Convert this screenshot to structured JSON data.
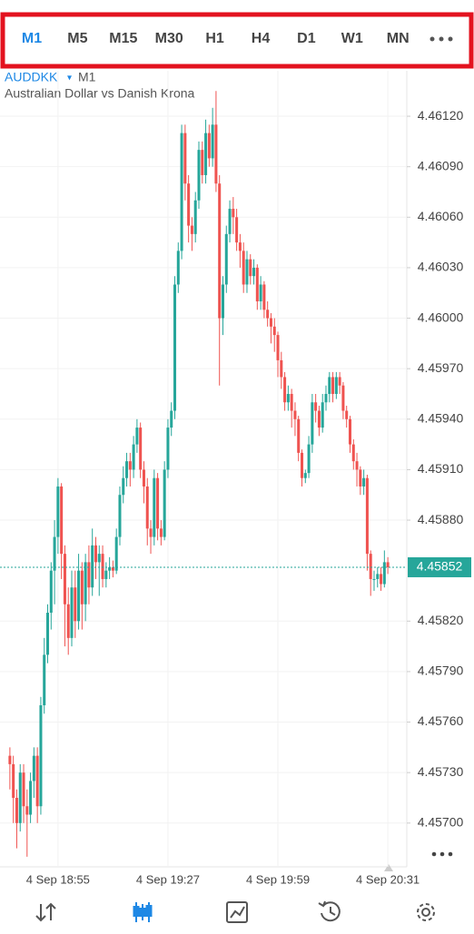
{
  "toolbar": {
    "timeframes": [
      "M1",
      "M5",
      "M15",
      "M30",
      "H1",
      "H4",
      "D1",
      "W1",
      "MN"
    ],
    "selected": 0
  },
  "chart_data": {
    "type": "candlestick",
    "symbol": "AUDDKK",
    "timeframe": "M1",
    "subtitle": "Australian Dollar vs Danish Krona",
    "up_color": "#26a69a",
    "down_color": "#ef5350",
    "grid": true,
    "ylim": [
      4.45674,
      4.46147
    ],
    "yticks": [
      {
        "value": 4.4612,
        "label": "4.46120"
      },
      {
        "value": 4.4609,
        "label": "4.46090"
      },
      {
        "value": 4.4606,
        "label": "4.46060"
      },
      {
        "value": 4.4603,
        "label": "4.46030"
      },
      {
        "value": 4.46,
        "label": "4.46000"
      },
      {
        "value": 4.4597,
        "label": "4.45970"
      },
      {
        "value": 4.4594,
        "label": "4.45940"
      },
      {
        "value": 4.4591,
        "label": "4.45910"
      },
      {
        "value": 4.4588,
        "label": "4.45880"
      },
      {
        "value": 4.4582,
        "label": "4.45820"
      },
      {
        "value": 4.4579,
        "label": "4.45790"
      },
      {
        "value": 4.4576,
        "label": "4.45760"
      },
      {
        "value": 4.4573,
        "label": "4.45730"
      },
      {
        "value": 4.457,
        "label": "4.45700"
      }
    ],
    "last": {
      "value": 4.45852,
      "label": "4.45852"
    },
    "categories": [
      null,
      null,
      null,
      null,
      null,
      null,
      null,
      null,
      null,
      null,
      null,
      null,
      null,
      null,
      "4 Sep 18:55",
      null,
      null,
      null,
      null,
      null,
      null,
      null,
      null,
      null,
      null,
      null,
      null,
      null,
      null,
      null,
      null,
      null,
      null,
      null,
      null,
      null,
      null,
      null,
      null,
      null,
      null,
      null,
      null,
      null,
      null,
      null,
      "4 Sep 19:27",
      null,
      null,
      null,
      null,
      null,
      null,
      null,
      null,
      null,
      null,
      null,
      null,
      null,
      null,
      null,
      null,
      null,
      null,
      null,
      null,
      null,
      null,
      null,
      null,
      null,
      null,
      null,
      null,
      null,
      null,
      null,
      "4 Sep 19:59",
      null,
      null,
      null,
      null,
      null,
      null,
      null,
      null,
      null,
      null,
      null,
      null,
      null,
      null,
      null,
      null,
      null,
      null,
      null,
      null,
      null,
      null,
      null,
      null,
      null,
      null,
      null,
      null,
      null,
      null,
      null,
      "4 Sep 20:31"
    ],
    "ohlc": [
      [
        4.4574,
        4.45745,
        4.4572,
        4.45735
      ],
      [
        4.45735,
        4.4574,
        4.457,
        4.45715
      ],
      [
        4.45715,
        4.4572,
        4.45685,
        4.457
      ],
      [
        4.457,
        4.45735,
        4.45695,
        4.4573
      ],
      [
        4.4573,
        4.45735,
        4.457,
        4.4571
      ],
      [
        4.4571,
        4.4572,
        4.4568,
        4.45705
      ],
      [
        4.45705,
        4.4573,
        4.457,
        4.45725
      ],
      [
        4.45725,
        4.45745,
        4.45715,
        4.4574
      ],
      [
        4.4574,
        4.45745,
        4.457,
        4.4571
      ],
      [
        4.4571,
        4.45775,
        4.45705,
        4.4577
      ],
      [
        4.4577,
        4.4581,
        4.45765,
        4.458
      ],
      [
        4.458,
        4.4583,
        4.45795,
        4.45825
      ],
      [
        4.45825,
        4.45855,
        4.45815,
        4.4585
      ],
      [
        4.4585,
        4.4588,
        4.4583,
        4.4587
      ],
      [
        4.4587,
        4.45905,
        4.4586,
        4.459
      ],
      [
        4.459,
        4.45902,
        4.45845,
        4.4586
      ],
      [
        4.4586,
        4.45865,
        4.45805,
        4.4583
      ],
      [
        4.4583,
        4.4584,
        4.458,
        4.4581
      ],
      [
        4.4581,
        4.4585,
        4.45805,
        4.4584
      ],
      [
        4.4584,
        4.4585,
        4.4581,
        4.4582
      ],
      [
        4.4582,
        4.4586,
        4.45815,
        4.4585
      ],
      [
        4.4585,
        4.45855,
        4.45815,
        4.4583
      ],
      [
        4.4583,
        4.4586,
        4.4582,
        4.45855
      ],
      [
        4.45855,
        4.45865,
        4.4583,
        4.4584
      ],
      [
        4.4584,
        4.45875,
        4.45835,
        4.45865
      ],
      [
        4.45865,
        4.4587,
        4.45845,
        4.45855
      ],
      [
        4.45855,
        4.45865,
        4.45835,
        4.4586
      ],
      [
        4.4586,
        4.45865,
        4.4584,
        4.45845
      ],
      [
        4.45845,
        4.45855,
        4.4584,
        4.4585
      ],
      [
        4.4585,
        4.45858,
        4.45845,
        4.45852
      ],
      [
        4.45852,
        4.45856,
        4.45846,
        4.4585
      ],
      [
        4.4585,
        4.45875,
        4.45848,
        4.4587
      ],
      [
        4.4587,
        4.459,
        4.45865,
        4.45895
      ],
      [
        4.45895,
        4.45912,
        4.4589,
        4.45905
      ],
      [
        4.45905,
        4.4592,
        4.459,
        4.45915
      ],
      [
        4.45915,
        4.4592,
        4.459,
        4.4591
      ],
      [
        4.4591,
        4.4593,
        4.45905,
        4.45925
      ],
      [
        4.45925,
        4.4594,
        4.4592,
        4.45935
      ],
      [
        4.45935,
        4.45938,
        4.45905,
        4.4591
      ],
      [
        4.4591,
        4.45915,
        4.4589,
        4.459
      ],
      [
        4.459,
        4.45905,
        4.45865,
        4.45875
      ],
      [
        4.45875,
        4.4588,
        4.4586,
        4.4587
      ],
      [
        4.4587,
        4.4591,
        4.45865,
        4.45905
      ],
      [
        4.45905,
        4.45908,
        4.45868,
        4.45875
      ],
      [
        4.45875,
        4.4588,
        4.45865,
        4.4587
      ],
      [
        4.4587,
        4.45915,
        4.45868,
        4.4591
      ],
      [
        4.4591,
        4.4594,
        4.45905,
        4.45935
      ],
      [
        4.45935,
        4.4595,
        4.4593,
        4.45945
      ],
      [
        4.45945,
        4.46025,
        4.4594,
        4.4602
      ],
      [
        4.4602,
        4.46045,
        4.46015,
        4.4604
      ],
      [
        4.4604,
        4.46115,
        4.46035,
        4.4611
      ],
      [
        4.4611,
        4.46115,
        4.4607,
        4.4608
      ],
      [
        4.4608,
        4.46085,
        4.46045,
        4.46055
      ],
      [
        4.46055,
        4.4606,
        4.4604,
        4.4605
      ],
      [
        4.4605,
        4.46075,
        4.46045,
        4.4607
      ],
      [
        4.4607,
        4.46105,
        4.46065,
        4.461
      ],
      [
        4.461,
        4.46105,
        4.4608,
        4.46085
      ],
      [
        4.46085,
        4.46118,
        4.4608,
        4.4611
      ],
      [
        4.4611,
        4.46115,
        4.4609,
        4.46095
      ],
      [
        4.46095,
        4.46125,
        4.4609,
        4.46115
      ],
      [
        4.46115,
        4.46135,
        4.46075,
        4.4608
      ],
      [
        4.4608,
        4.46085,
        4.4596,
        4.46
      ],
      [
        4.46,
        4.46025,
        4.4599,
        4.4602
      ],
      [
        4.4602,
        4.46055,
        4.46015,
        4.4605
      ],
      [
        4.4605,
        4.4607,
        4.46045,
        4.46065
      ],
      [
        4.46065,
        4.46072,
        4.4605,
        4.4606
      ],
      [
        4.4606,
        4.46065,
        4.4604,
        4.46045
      ],
      [
        4.46045,
        4.4605,
        4.4603,
        4.4604
      ],
      [
        4.4604,
        4.46045,
        4.46015,
        4.4602
      ],
      [
        4.4602,
        4.4604,
        4.46015,
        4.46035
      ],
      [
        4.46035,
        4.46038,
        4.4602,
        4.46025
      ],
      [
        4.46025,
        4.46035,
        4.4602,
        4.4603
      ],
      [
        4.4603,
        4.46032,
        4.46005,
        4.4601
      ],
      [
        4.4601,
        4.46025,
        4.46005,
        4.4602
      ],
      [
        4.4602,
        4.46022,
        4.46,
        4.46005
      ],
      [
        4.46005,
        4.4601,
        4.45995,
        4.46
      ],
      [
        4.46,
        4.46003,
        4.45985,
        4.45995
      ],
      [
        4.45995,
        4.46,
        4.4598,
        4.4599
      ],
      [
        4.4599,
        4.45992,
        4.45965,
        4.45975
      ],
      [
        4.45975,
        4.4598,
        4.45958,
        4.45965
      ],
      [
        4.45965,
        4.45968,
        4.45945,
        4.4595
      ],
      [
        4.4595,
        4.4596,
        4.45945,
        4.45955
      ],
      [
        4.45955,
        4.45958,
        4.45935,
        4.45945
      ],
      [
        4.45945,
        4.4595,
        4.4593,
        4.4594
      ],
      [
        4.4594,
        4.45942,
        4.45915,
        4.4592
      ],
      [
        4.4592,
        4.45922,
        4.459,
        4.45905
      ],
      [
        4.45905,
        4.4591,
        4.45902,
        4.45908
      ],
      [
        4.45908,
        4.4593,
        4.45905,
        4.45925
      ],
      [
        4.45925,
        4.45955,
        4.4592,
        4.4595
      ],
      [
        4.4595,
        4.45955,
        4.45938,
        4.45945
      ],
      [
        4.45945,
        4.45948,
        4.4593,
        4.45935
      ],
      [
        4.45935,
        4.45955,
        4.45932,
        4.4595
      ],
      [
        4.4595,
        4.4596,
        4.45945,
        4.45955
      ],
      [
        4.45955,
        4.45968,
        4.4595,
        4.45965
      ],
      [
        4.45965,
        4.45968,
        4.4595,
        4.45955
      ],
      [
        4.45955,
        4.45968,
        4.45952,
        4.45965
      ],
      [
        4.45965,
        4.45968,
        4.45955,
        4.4596
      ],
      [
        4.4596,
        4.45962,
        4.4594,
        4.45945
      ],
      [
        4.45945,
        4.45948,
        4.45935,
        4.4594
      ],
      [
        4.4594,
        4.45942,
        4.4592,
        4.45925
      ],
      [
        4.45925,
        4.45928,
        4.4591,
        4.45915
      ],
      [
        4.45915,
        4.4592,
        4.459,
        4.4591
      ],
      [
        4.4591,
        4.45912,
        4.45895,
        4.459
      ],
      [
        4.459,
        4.4591,
        4.45895,
        4.45905
      ],
      [
        4.45905,
        4.45907,
        4.4585,
        4.4586
      ],
      [
        4.4586,
        4.45862,
        4.45835,
        4.45845
      ],
      [
        4.45845,
        4.4585,
        4.45838,
        4.45845
      ],
      [
        4.45845,
        4.45852,
        4.4584,
        4.45848
      ],
      [
        4.45848,
        4.45852,
        4.45838,
        4.45842
      ],
      [
        4.45842,
        4.45862,
        4.4584,
        4.45855
      ],
      [
        4.45855,
        4.45858,
        4.45848,
        4.45852
      ]
    ]
  }
}
